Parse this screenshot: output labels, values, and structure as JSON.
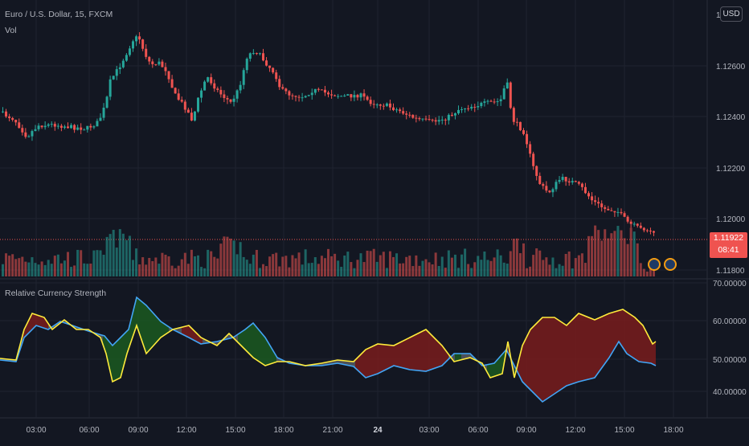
{
  "symbol": {
    "title": "Euro / U.S. Dollar, 15, FXCM",
    "volume_label": "Vol",
    "currency": "USD"
  },
  "price_axis": {
    "ticks": [
      "1.12600",
      "1.12400",
      "1.12200",
      "1.12000",
      "1.11800"
    ],
    "top_tick_partial": "1."
  },
  "last_price": {
    "value": "1.11922",
    "countdown": "08:41",
    "color": "#ef5350"
  },
  "indicator": {
    "name": "Relative Currency Strength",
    "axis_ticks": [
      "70.00000",
      "60.00000",
      "50.00000",
      "40.00000"
    ],
    "line_colors": {
      "base": "#ffeb3b",
      "quote": "#42a5f5"
    },
    "fill_colors": {
      "bullish": "#1b5e20",
      "bearish": "#7f1d1d",
      "neutral": "#5d5f66"
    }
  },
  "time_axis": {
    "labels": [
      "03:00",
      "06:00",
      "09:00",
      "12:00",
      "15:00",
      "18:00",
      "21:00",
      "24",
      "03:00",
      "06:00",
      "09:00",
      "12:00",
      "15:00",
      "18:00"
    ]
  },
  "events": [
    {
      "name": "us-flag"
    },
    {
      "name": "eu-flag"
    }
  ],
  "colors": {
    "up": "#26a69a",
    "down": "#ef5350",
    "background": "#131722",
    "grid": "#1f2330"
  }
}
